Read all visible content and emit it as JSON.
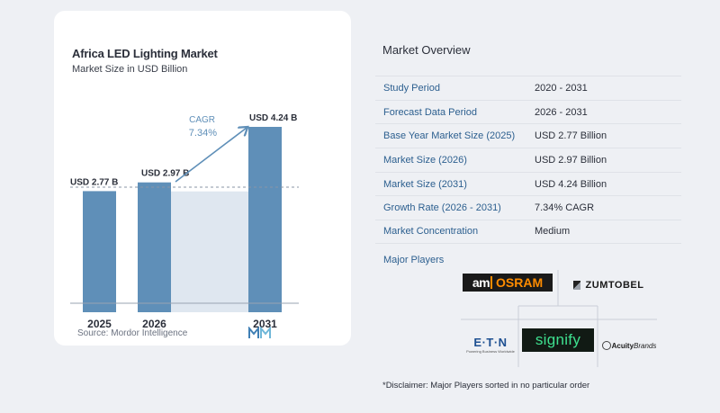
{
  "chart_data": {
    "type": "bar",
    "title": "Africa LED Lighting Market",
    "subtitle": "Market Size in USD Billion",
    "categories": [
      "2025",
      "2026",
      "2031"
    ],
    "values": [
      2.77,
      2.97,
      4.24
    ],
    "value_labels": [
      "USD 2.77 B",
      "USD 2.97 B",
      "USD 4.24 B"
    ],
    "cagr_label": "CAGR",
    "cagr_value": "7.34%",
    "bar_color": "#5f8fb8",
    "ylim": [
      0,
      4.24
    ]
  },
  "source": "Source:  Mordor Intelligence",
  "overview": {
    "title": "Market Overview",
    "rows": [
      {
        "label": "Study Period",
        "value": "2020 - 2031"
      },
      {
        "label": "Forecast Data Period",
        "value": "2026 - 2031"
      },
      {
        "label": "Base Year Market Size (2025)",
        "value": "USD 2.77 Billion"
      },
      {
        "label": "Market Size (2026)",
        "value": "USD 2.97 Billion"
      },
      {
        "label": "Market Size (2031)",
        "value": "USD 4.24 Billion"
      },
      {
        "label": "Growth Rate (2026 - 2031)",
        "value": "7.34% CAGR"
      },
      {
        "label": "Market Concentration",
        "value": "Medium"
      }
    ]
  },
  "players": {
    "title": "Major Players",
    "logos": [
      "ams OSRAM",
      "ZUMTOBEL",
      "EATON",
      "Signify",
      "AcuityBrands"
    ],
    "eaton_tagline": "Powering Business Worldwide"
  },
  "disclaimer": "*Disclaimer: Major Players sorted in no particular order",
  "colors": {
    "label_blue": "#2c5f8f",
    "accent": "#5f8fb8",
    "signify_green": "#3ee08f"
  }
}
